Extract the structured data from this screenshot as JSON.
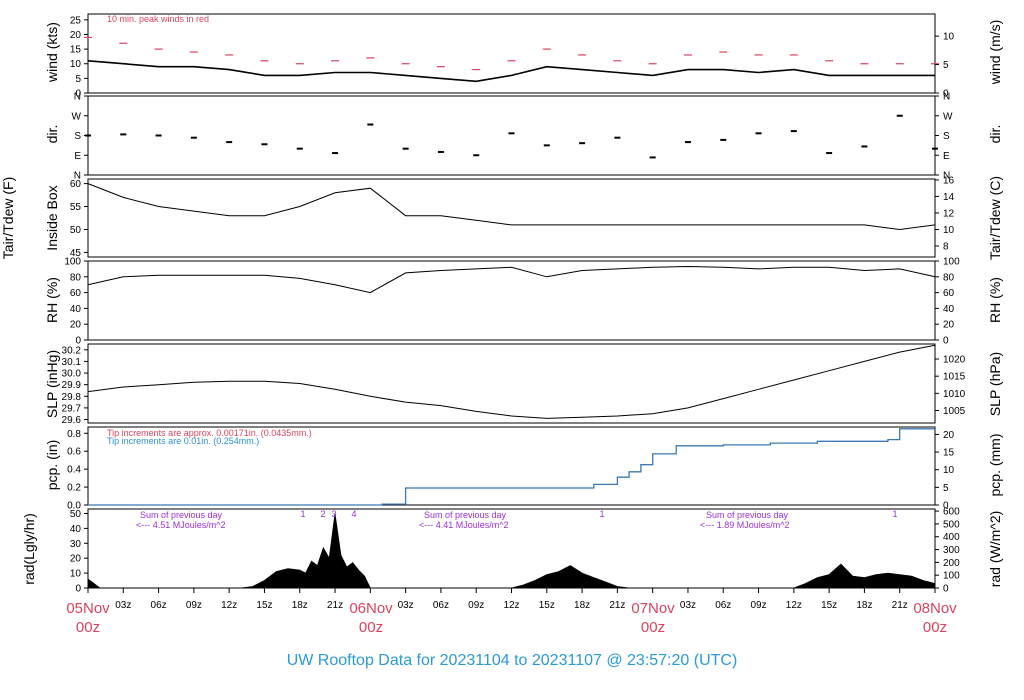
{
  "title": "UW Rooftop Data for 20231104  to  20231107 @ 23:57:20  (UTC)",
  "colors": {
    "red": "#d9445f",
    "blue": "#2f8fd3",
    "purple": "#9b30d8",
    "line": "#000000",
    "pcp": "#3b78b5",
    "title": "#2a9ad8"
  },
  "x_axis": {
    "day_labels": [
      {
        "day": "05Nov",
        "hour": "00z"
      },
      {
        "day": "06Nov",
        "hour": "00z"
      },
      {
        "day": "07Nov",
        "hour": "00z"
      },
      {
        "day": "08Nov",
        "hour": "00z"
      }
    ],
    "hour_labels": [
      "03z",
      "06z",
      "09z",
      "12z",
      "15z",
      "18z",
      "21z"
    ]
  },
  "panels": {
    "wind": {
      "left_label": "wind (kts)",
      "right_label": "wind (m/s)",
      "note": "10 min. peak winds in red",
      "left_ticks": [
        "0",
        "5",
        "10",
        "15",
        "20",
        "25"
      ],
      "right_ticks": [
        "0",
        "5",
        "10"
      ]
    },
    "dir": {
      "left_label": "dir.",
      "right_label": "dir.",
      "ticks": [
        "N",
        "E",
        "S",
        "W",
        "N"
      ]
    },
    "temp": {
      "left_label": "Tair/Tdew (F)",
      "left_label2": "Inside Box",
      "right_label": "Tair/Tdew (C)",
      "left_ticks": [
        "45",
        "50",
        "55",
        "60"
      ],
      "right_ticks": [
        "8",
        "10",
        "12",
        "14",
        "16"
      ]
    },
    "rh": {
      "left_label": "RH (%)",
      "right_label": "RH (%)",
      "ticks": [
        "0",
        "20",
        "40",
        "60",
        "80",
        "100"
      ]
    },
    "slp": {
      "left_label": "SLP (inHg)",
      "right_label": "SLP (hPa)",
      "left_ticks": [
        "29.6",
        "29.7",
        "29.8",
        "29.9",
        "30.0",
        "30.1",
        "30.2"
      ],
      "right_ticks": [
        "1005",
        "1010",
        "1015",
        "1020",
        "1025"
      ]
    },
    "pcp": {
      "left_label": "pcp. (in)",
      "right_label": "pcp. (mm)",
      "note_red": "Tip increments are approx. 0.00171in. (0.0435mm.)",
      "note_blue": "Tip increments are 0.01in. (0.254mm.)",
      "left_ticks": [
        "0.0",
        "0.2",
        "0.4",
        "0.6",
        "0.8"
      ],
      "right_ticks": [
        "0",
        "5",
        "10",
        "15",
        "20"
      ]
    },
    "rad": {
      "left_label": "rad(Lgly/hr)",
      "right_label": "rad (W/m^2)",
      "left_ticks": [
        "0",
        "10",
        "20",
        "30",
        "40",
        "50"
      ],
      "right_ticks": [
        "0",
        "100",
        "200",
        "300",
        "400",
        "500",
        "600"
      ],
      "daily_sums": [
        {
          "line1": "Sum of previous day",
          "line2": "<--- 4.51 MJoules/m^2"
        },
        {
          "line1": "Sum of previous day",
          "line2": "<--- 4.41 MJoules/m^2"
        },
        {
          "line1": "Sum of previous day",
          "line2": "<--- 1.89 MJoules/m^2"
        }
      ],
      "markers": [
        "1",
        "2",
        "3",
        "4",
        "1",
        "1"
      ]
    }
  },
  "chart_data": {
    "type": "line",
    "x_unit": "hours since 05Nov 00z",
    "x_range": [
      0,
      72
    ],
    "series": [
      {
        "name": "wind (kts)",
        "ylim": [
          0,
          27
        ],
        "x": [
          0,
          3,
          6,
          9,
          12,
          15,
          18,
          21,
          24,
          27,
          30,
          33,
          36,
          39,
          42,
          45,
          48,
          51,
          54,
          57,
          60,
          63,
          66,
          69,
          72
        ],
        "values": [
          11,
          10,
          9,
          9,
          8,
          6,
          6,
          7,
          7,
          6,
          5,
          4,
          6,
          9,
          8,
          7,
          6,
          8,
          8,
          7,
          8,
          6,
          6,
          6,
          6
        ]
      },
      {
        "name": "10 min. peak winds in red",
        "ylim": [
          0,
          27
        ],
        "x": [
          0,
          3,
          6,
          9,
          12,
          15,
          18,
          21,
          24,
          27,
          30,
          33,
          36,
          39,
          42,
          45,
          48,
          51,
          54,
          57,
          60,
          63,
          66,
          69,
          72
        ],
        "values": [
          19,
          17,
          15,
          14,
          13,
          11,
          10,
          11,
          12,
          10,
          9,
          8,
          11,
          15,
          13,
          11,
          10,
          13,
          14,
          13,
          13,
          11,
          10,
          10,
          10
        ]
      },
      {
        "name": "dir.",
        "ylim": [
          0,
          360
        ],
        "x": [
          0,
          3,
          6,
          9,
          12,
          15,
          18,
          21,
          24,
          27,
          30,
          33,
          36,
          39,
          42,
          45,
          48,
          51,
          54,
          57,
          60,
          63,
          66,
          69,
          72
        ],
        "values": [
          180,
          185,
          180,
          170,
          150,
          140,
          120,
          100,
          230,
          120,
          105,
          90,
          190,
          135,
          145,
          170,
          80,
          150,
          160,
          190,
          200,
          100,
          130,
          270,
          120
        ]
      },
      {
        "name": "Tair/Tdew (F)",
        "ylim": [
          44,
          61
        ],
        "x": [
          0,
          3,
          6,
          9,
          12,
          15,
          18,
          21,
          24,
          27,
          30,
          33,
          36,
          39,
          42,
          45,
          48,
          51,
          54,
          57,
          60,
          63,
          66,
          69,
          72
        ],
        "values": [
          60,
          57,
          55,
          54,
          53,
          53,
          55,
          58,
          59,
          53,
          53,
          52,
          51,
          51,
          51,
          51,
          51,
          51,
          51,
          51,
          51,
          51,
          51,
          50,
          51
        ]
      },
      {
        "name": "RH (%)",
        "ylim": [
          0,
          100
        ],
        "x": [
          0,
          3,
          6,
          9,
          12,
          15,
          18,
          21,
          24,
          27,
          30,
          33,
          36,
          39,
          42,
          45,
          48,
          51,
          54,
          57,
          60,
          63,
          66,
          69,
          72
        ],
        "values": [
          70,
          80,
          82,
          82,
          82,
          82,
          78,
          70,
          60,
          85,
          88,
          90,
          92,
          80,
          88,
          90,
          92,
          93,
          92,
          90,
          92,
          92,
          88,
          90,
          80
        ]
      },
      {
        "name": "SLP (inHg)",
        "ylim": [
          29.57,
          30.25
        ],
        "x": [
          0,
          3,
          6,
          9,
          12,
          15,
          18,
          21,
          24,
          27,
          30,
          33,
          36,
          39,
          42,
          45,
          48,
          51,
          54,
          57,
          60,
          63,
          66,
          69,
          72
        ],
        "values": [
          29.84,
          29.88,
          29.9,
          29.92,
          29.93,
          29.93,
          29.91,
          29.86,
          29.8,
          29.75,
          29.72,
          29.67,
          29.63,
          29.61,
          29.62,
          29.63,
          29.65,
          29.7,
          29.78,
          29.86,
          29.94,
          30.02,
          30.1,
          30.18,
          30.24
        ]
      },
      {
        "name": "pcp. (in)",
        "ylim": [
          0,
          0.87
        ],
        "x": [
          0,
          12,
          23,
          25,
          27,
          36,
          41,
          43,
          45,
          46,
          47,
          48,
          50,
          54,
          58,
          62,
          68,
          69,
          70,
          72
        ],
        "values": [
          0,
          0,
          0,
          0.01,
          0.19,
          0.19,
          0.19,
          0.23,
          0.31,
          0.37,
          0.45,
          0.57,
          0.66,
          0.67,
          0.69,
          0.71,
          0.73,
          0.85,
          0.85,
          0.85
        ]
      },
      {
        "name": "rad(Lgly/hr)",
        "ylim": [
          0,
          53
        ],
        "x": [
          0,
          0.5,
          1,
          13,
          14,
          15,
          16,
          17,
          18,
          18.5,
          19,
          19.5,
          20,
          20.5,
          21,
          21.5,
          22,
          22.5,
          23,
          23.5,
          24,
          36,
          37,
          38,
          39,
          40,
          41,
          42,
          43,
          44,
          45,
          46,
          60,
          61,
          62,
          63,
          64,
          65,
          66,
          67,
          68,
          69,
          70,
          71,
          72
        ],
        "values": [
          6,
          3,
          0,
          0,
          1,
          5,
          11,
          13,
          12,
          10,
          18,
          15,
          27,
          20,
          50,
          22,
          14,
          17,
          12,
          8,
          0,
          0,
          2,
          5,
          9,
          11,
          15,
          10,
          7,
          4,
          1,
          0,
          0,
          3,
          7,
          9,
          16,
          8,
          7,
          9,
          10,
          9,
          8,
          5,
          3
        ]
      }
    ]
  }
}
